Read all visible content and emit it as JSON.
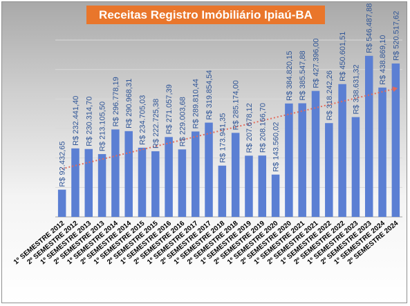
{
  "chart_data": {
    "type": "bar",
    "title": "Receitas Registro Imóbiliário Ipiaú-BA",
    "categories": [
      "1º SEMESTRE 2012",
      "2º SEMESTRE 2012",
      "1º SEMESTRE 2013",
      "2º SEMESTRE 2013",
      "1º SEMESTRE 2014",
      "2º SEMESTRE 2014",
      "1º SEMESTRE 2015",
      "2º SEMESTRE 2015",
      "1º SEMESTRE 2016",
      "2º SEMESTRE 2016",
      "1º SEMESTRE 2017",
      "2º SEMESTRE 2017",
      "1º SEMESTRE 2018",
      "2º SEMESTRE 2018",
      "1º SEMESTRE 2019",
      "2º SEMESTRE 2019",
      "1º SEMESTRE 2020",
      "2º SEMESTRE 2020",
      "1º SEMESTRE 2021",
      "2º SEMESTRE 2021",
      "1º SEMESTRE 2022",
      "2º SEMESTRE 2022",
      "1º SEMESTRE 2023",
      "2º SEMESTRE 2023",
      "1º SEMESTRE 2024",
      "2º SEMESTRE 2024"
    ],
    "values": [
      92432.65,
      232441.4,
      230314.7,
      213105.5,
      296778.19,
      290968.31,
      234705.03,
      222725.38,
      271057.39,
      229003.68,
      289810.44,
      319854.54,
      173941.35,
      285174.0,
      207678.12,
      208166.7,
      143560.02,
      384820.15,
      385547.88,
      427396.0,
      318242.26,
      450601.51,
      338631.32,
      546487.88,
      438869.1,
      520517.62
    ],
    "labels": [
      "R$ 92.432,65",
      "R$ 232.441,40",
      "R$ 230.314,70",
      "R$ 213.105,50",
      "R$ 296.778,19",
      "R$ 290.968,31",
      "R$ 234.705,03",
      "R$ 222.725,38",
      "R$ 271.057,39",
      "R$ 229.003,68",
      "R$ 289.810,44",
      "R$ 319.854,54",
      "R$ 173.941,35",
      "R$ 285.174,00",
      "R$ 207.678,12",
      "R$ 208.166,70",
      "R$ 143.560,02",
      "R$ 384.820,15",
      "R$ 385.547,88",
      "R$ 427.396,00",
      "R$ 318.242,26",
      "R$ 450.601,51",
      "R$ 338.631,32",
      "R$ 546.487,88",
      "R$ 438.869,10",
      "R$ 520.517,62"
    ],
    "ylim": [
      0,
      600000
    ],
    "grid": true,
    "trendline": "linear",
    "colors": {
      "bar": "#5b7fd3",
      "label": "#2f5597",
      "trend": "#e26a5a",
      "title_bg": "#e9762b"
    }
  }
}
